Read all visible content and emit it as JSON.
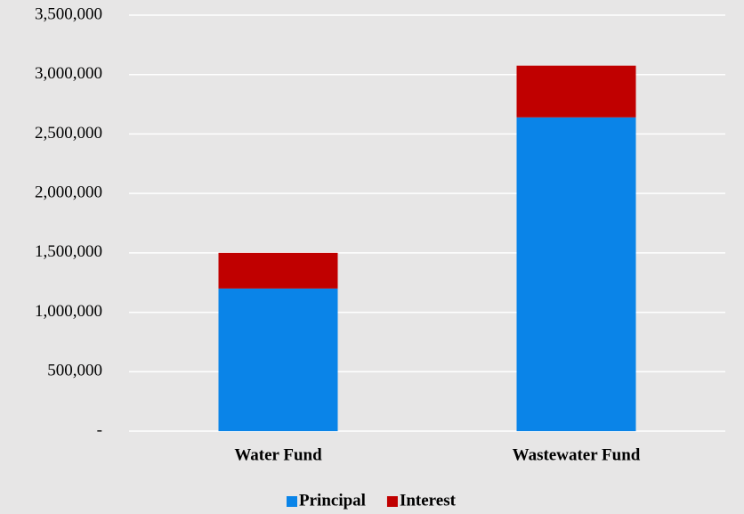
{
  "chart_data": {
    "type": "stacked_bar",
    "categories": [
      "Water Fund",
      "Wastewater Fund"
    ],
    "series": [
      {
        "name": "Principal",
        "color": "#0a84e8",
        "values": [
          1200000,
          2640000
        ]
      },
      {
        "name": "Interest",
        "color": "#c00000",
        "values": [
          300000,
          435000
        ]
      }
    ],
    "ylim": [
      0,
      3500000
    ],
    "yticks": [
      {
        "value": 0,
        "label": "-"
      },
      {
        "value": 500000,
        "label": "500,000"
      },
      {
        "value": 1000000,
        "label": "1,000,000"
      },
      {
        "value": 1500000,
        "label": "1,500,000"
      },
      {
        "value": 2000000,
        "label": "2,000,000"
      },
      {
        "value": 2500000,
        "label": "2,500,000"
      },
      {
        "value": 3000000,
        "label": "3,000,000"
      },
      {
        "value": 3500000,
        "label": "3,500,000"
      }
    ],
    "grid": true,
    "legend": "bottom"
  }
}
